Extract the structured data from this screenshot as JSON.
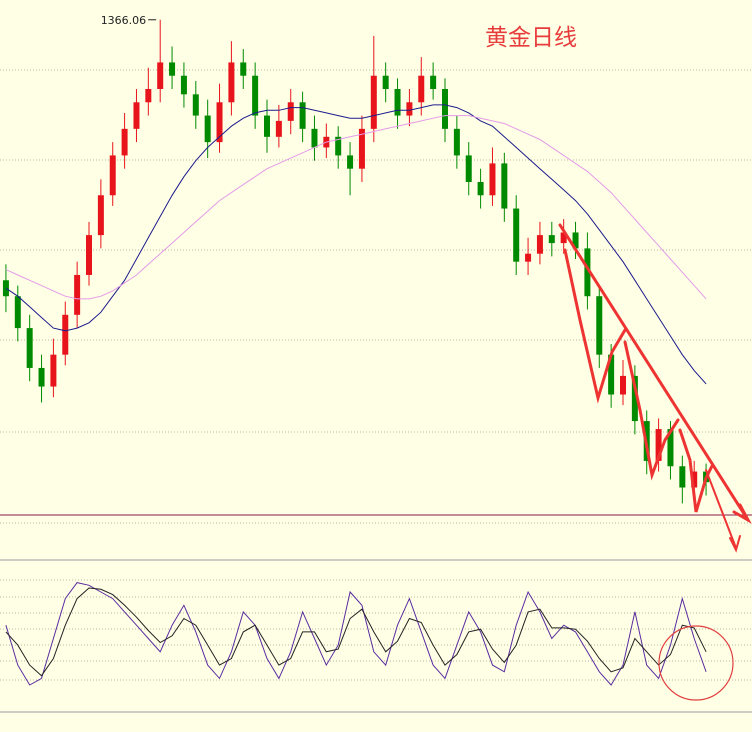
{
  "chart_data": {
    "type": "candlestick",
    "title": "黄金日线",
    "ylim": [
      1174,
      1373.5
    ],
    "up_color": "#e8141b",
    "down_color": "#008a00",
    "open": [
      1268,
      1262,
      1250,
      1235,
      1228,
      1240,
      1255,
      1270,
      1285,
      1300,
      1315,
      1325,
      1335,
      1340,
      1350,
      1345,
      1338,
      1330,
      1320,
      1335,
      1350,
      1345,
      1330,
      1322,
      1328,
      1335,
      1325,
      1318,
      1322,
      1315,
      1310,
      1325,
      1345,
      1340,
      1330,
      1335,
      1345,
      1340,
      1325,
      1315,
      1305,
      1300,
      1312,
      1295,
      1275,
      1278,
      1285,
      1282,
      1286,
      1280,
      1262,
      1240,
      1225,
      1232,
      1215,
      1200,
      1212,
      1198,
      1190,
      1196
    ],
    "high": [
      1274,
      1266,
      1255,
      1240,
      1246,
      1260,
      1275,
      1290,
      1306,
      1320,
      1331,
      1340,
      1348,
      1366.06,
      1356,
      1350,
      1343,
      1336,
      1342,
      1358,
      1355,
      1350,
      1336,
      1334,
      1340,
      1339,
      1330,
      1327,
      1326,
      1320,
      1330,
      1360,
      1350,
      1344,
      1340,
      1352,
      1350,
      1344,
      1330,
      1320,
      1310,
      1318,
      1316,
      1300,
      1284,
      1290,
      1290,
      1291,
      1290,
      1286,
      1266,
      1244,
      1238,
      1236,
      1219,
      1216,
      1215,
      1202,
      1200,
      1199
    ],
    "low": [
      1256,
      1245,
      1230,
      1222,
      1224,
      1236,
      1250,
      1266,
      1280,
      1296,
      1310,
      1320,
      1330,
      1335,
      1340,
      1333,
      1325,
      1314,
      1316,
      1330,
      1340,
      1325,
      1316,
      1318,
      1323,
      1320,
      1313,
      1314,
      1310,
      1300,
      1305,
      1320,
      1335,
      1325,
      1326,
      1330,
      1336,
      1320,
      1310,
      1300,
      1295,
      1296,
      1290,
      1270,
      1270,
      1274,
      1277,
      1278,
      1276,
      1257,
      1235,
      1220,
      1221,
      1210,
      1195,
      1196,
      1193,
      1184,
      1186,
      1187
    ],
    "close": [
      1262,
      1250,
      1235,
      1228,
      1240,
      1255,
      1270,
      1285,
      1300,
      1315,
      1325,
      1335,
      1340,
      1350,
      1345,
      1338,
      1330,
      1320,
      1335,
      1350,
      1345,
      1330,
      1322,
      1328,
      1335,
      1325,
      1318,
      1322,
      1315,
      1310,
      1325,
      1345,
      1340,
      1330,
      1335,
      1345,
      1340,
      1325,
      1315,
      1305,
      1300,
      1312,
      1295,
      1275,
      1278,
      1285,
      1282,
      1286,
      1280,
      1262,
      1240,
      1225,
      1232,
      1215,
      1200,
      1212,
      1198,
      1190,
      1196,
      1192
    ],
    "series": [
      {
        "color": "#1c1c8c",
        "values": [
          1265,
          1262,
          1258,
          1254,
          1250,
          1249,
          1250,
          1252,
          1256,
          1262,
          1268,
          1276,
          1284,
          1292,
          1300,
          1307,
          1313,
          1318,
          1322,
          1326,
          1329,
          1331,
          1332,
          1332,
          1333,
          1333,
          1332,
          1331,
          1330,
          1329,
          1329,
          1330,
          1331,
          1332,
          1332,
          1333,
          1334,
          1334,
          1333,
          1331,
          1328,
          1326,
          1322,
          1318,
          1314,
          1310,
          1306,
          1302,
          1298,
          1293,
          1287,
          1281,
          1275,
          1268,
          1261,
          1254,
          1247,
          1240,
          1234,
          1229
        ]
      },
      {
        "color": "#e49be8",
        "values": [
          1272,
          1270,
          1268,
          1266,
          1264,
          1262,
          1261,
          1261,
          1262,
          1264,
          1267,
          1270,
          1274,
          1278,
          1282,
          1286,
          1290,
          1294,
          1298,
          1301,
          1304,
          1307,
          1310,
          1312,
          1314,
          1316,
          1318,
          1320,
          1321,
          1322,
          1323,
          1324,
          1325,
          1326,
          1327,
          1328,
          1329,
          1330,
          1330,
          1330,
          1329,
          1328,
          1327,
          1325,
          1323,
          1321,
          1318,
          1315,
          1312,
          1309,
          1305,
          1301,
          1296,
          1291,
          1286,
          1281,
          1276,
          1271,
          1266,
          1261
        ]
      }
    ],
    "oscillator": {
      "ylim": [
        0,
        100
      ],
      "series": [
        {
          "color": "#5a2ca0",
          "values": [
            60,
            30,
            15,
            20,
            50,
            80,
            92,
            90,
            85,
            80,
            70,
            60,
            50,
            40,
            60,
            75,
            55,
            30,
            20,
            40,
            70,
            60,
            35,
            20,
            40,
            70,
            50,
            30,
            45,
            85,
            75,
            40,
            30,
            60,
            80,
            55,
            30,
            20,
            45,
            70,
            55,
            30,
            25,
            60,
            85,
            70,
            50,
            60,
            55,
            40,
            25,
            15,
            30,
            70,
            30,
            20,
            45,
            80,
            50,
            25
          ]
        },
        {
          "color": "#222222",
          "values": [
            55,
            45,
            30,
            22,
            35,
            60,
            80,
            88,
            87,
            83,
            75,
            66,
            56,
            47,
            52,
            65,
            60,
            45,
            30,
            35,
            55,
            60,
            45,
            30,
            35,
            55,
            55,
            40,
            42,
            65,
            72,
            55,
            40,
            48,
            65,
            62,
            45,
            30,
            38,
            55,
            57,
            42,
            32,
            45,
            70,
            72,
            58,
            58,
            57,
            48,
            35,
            25,
            28,
            50,
            40,
            30,
            38,
            60,
            58,
            40
          ]
        }
      ]
    }
  }
}
